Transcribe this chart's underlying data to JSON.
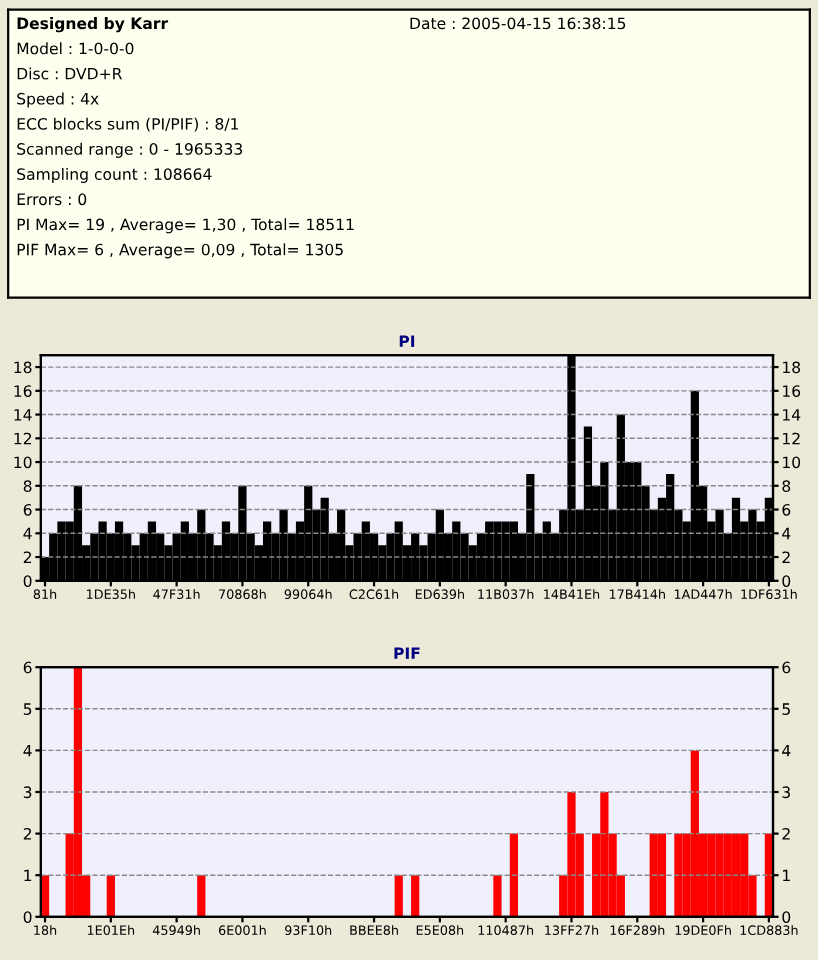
{
  "chart_data": [
    {
      "type": "other",
      "title": "Designed by Karr",
      "annotations": [
        "Date : 2005-04-15 16:38:15",
        "Model : 1-0-0-0",
        "Disc : DVD+R",
        "Speed : 4x",
        "ECC blocks sum (PI/PIF) : 8/1",
        "Scanned range : 0 - 1965333",
        "Sampling count : 108664",
        "Errors : 0",
        "PI Max= 19 , Average= 1,30 , Total= 18511",
        "PIF Max= 6 , Average= 0,09 , Total= 1305"
      ]
    },
    {
      "type": "bar",
      "title": "PI",
      "color": "#000000",
      "grid": "y",
      "ylim": [
        0,
        19
      ],
      "yticks": [
        0,
        2,
        4,
        6,
        8,
        10,
        12,
        14,
        16,
        18
      ],
      "y2lim": [
        0,
        19
      ],
      "y2ticks": [
        0,
        2,
        4,
        6,
        8,
        10,
        12,
        14,
        16,
        18
      ],
      "categories": [
        "81h",
        null,
        null,
        null,
        null,
        null,
        null,
        null,
        "1DE35h",
        null,
        null,
        null,
        null,
        null,
        null,
        null,
        "47F31h",
        null,
        null,
        null,
        null,
        null,
        null,
        null,
        "70868h",
        null,
        null,
        null,
        null,
        null,
        null,
        null,
        "99064h",
        null,
        null,
        null,
        null,
        null,
        null,
        null,
        "C2C61h",
        null,
        null,
        null,
        null,
        null,
        null,
        null,
        "ED639h",
        null,
        null,
        null,
        null,
        null,
        null,
        null,
        "11B037h",
        null,
        null,
        null,
        null,
        null,
        null,
        null,
        "14B41Eh",
        null,
        null,
        null,
        null,
        null,
        null,
        null,
        "17B414h",
        null,
        null,
        null,
        null,
        null,
        null,
        null,
        "1AD447h",
        null,
        null,
        null,
        null,
        null,
        null,
        null,
        "1DF631h"
      ],
      "values": [
        2,
        4,
        5,
        5,
        8,
        3,
        4,
        5,
        4,
        5,
        4,
        3,
        4,
        5,
        4,
        3,
        4,
        5,
        4,
        6,
        4,
        3,
        5,
        4,
        8,
        4,
        3,
        5,
        4,
        6,
        4,
        5,
        8,
        6,
        7,
        4,
        6,
        3,
        4,
        5,
        4,
        3,
        4,
        5,
        3,
        4,
        3,
        4,
        6,
        4,
        5,
        4,
        3,
        4,
        5,
        5,
        5,
        5,
        4,
        9,
        4,
        5,
        4,
        6,
        19,
        6,
        13,
        8,
        10,
        6,
        14,
        10,
        10,
        8,
        6,
        7,
        9,
        6,
        5,
        16,
        8,
        5,
        6,
        4,
        7,
        5,
        6,
        5,
        7
      ]
    },
    {
      "type": "bar",
      "title": "PIF",
      "color": "#ff0000",
      "grid": "y",
      "ylim": [
        0,
        6
      ],
      "yticks": [
        0,
        1,
        2,
        3,
        4,
        5,
        6
      ],
      "y2lim": [
        0,
        6
      ],
      "y2ticks": [
        0,
        1,
        2,
        3,
        4,
        5,
        6
      ],
      "categories": [
        "18h",
        null,
        null,
        null,
        null,
        null,
        null,
        null,
        "1E01Eh",
        null,
        null,
        null,
        null,
        null,
        null,
        null,
        "45949h",
        null,
        null,
        null,
        null,
        null,
        null,
        null,
        "6E001h",
        null,
        null,
        null,
        null,
        null,
        null,
        null,
        "93F10h",
        null,
        null,
        null,
        null,
        null,
        null,
        null,
        "BBEE8h",
        null,
        null,
        null,
        null,
        null,
        null,
        null,
        "E5E08h",
        null,
        null,
        null,
        null,
        null,
        null,
        null,
        "110487h",
        null,
        null,
        null,
        null,
        null,
        null,
        null,
        "13FF27h",
        null,
        null,
        null,
        null,
        null,
        null,
        null,
        "16F289h",
        null,
        null,
        null,
        null,
        null,
        null,
        null,
        "19DE0Fh",
        null,
        null,
        null,
        null,
        null,
        null,
        null,
        "1CD883h"
      ],
      "values": [
        1,
        0,
        0,
        2,
        6,
        1,
        0,
        0,
        1,
        0,
        0,
        0,
        0,
        0,
        0,
        0,
        0,
        0,
        0,
        1,
        0,
        0,
        0,
        0,
        0,
        0,
        0,
        0,
        0,
        0,
        0,
        0,
        0,
        0,
        0,
        0,
        0,
        0,
        0,
        0,
        0,
        0,
        0,
        1,
        0,
        1,
        0,
        0,
        0,
        0,
        0,
        0,
        0,
        0,
        0,
        1,
        0,
        2,
        0,
        0,
        0,
        0,
        0,
        1,
        3,
        2,
        0,
        2,
        3,
        2,
        1,
        0,
        0,
        0,
        2,
        2,
        0,
        2,
        2,
        4,
        2,
        2,
        2,
        2,
        2,
        2,
        1,
        0,
        2
      ]
    }
  ]
}
